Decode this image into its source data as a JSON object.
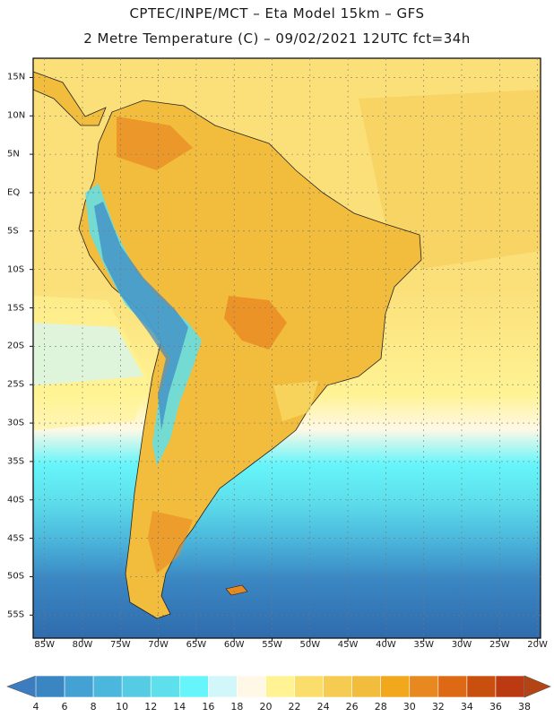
{
  "header": {
    "line1": "CPTEC/INPE/MCT –  Eta Model 15km – GFS",
    "line2": "2 Metre Temperature (C) – 09/02/2021 12UTC fct=34h"
  },
  "map": {
    "lat_labels": [
      "15N",
      "10N",
      "5N",
      "EQ",
      "5S",
      "10S",
      "15S",
      "20S",
      "25S",
      "30S",
      "35S",
      "40S",
      "45S",
      "50S",
      "55S"
    ],
    "lon_labels": [
      "85W",
      "80W",
      "75W",
      "70W",
      "65W",
      "60W",
      "55W",
      "50W",
      "45W",
      "40W",
      "35W",
      "30W",
      "25W",
      "20W"
    ]
  },
  "colorbar": {
    "labels": [
      "4",
      "6",
      "8",
      "10",
      "12",
      "14",
      "16",
      "18",
      "20",
      "22",
      "24",
      "26",
      "28",
      "30",
      "32",
      "34",
      "36",
      "38"
    ],
    "colors": [
      "#2f6cad",
      "#3a86c3",
      "#43a1d3",
      "#4bb7dc",
      "#55cbe4",
      "#5ee0ec",
      "#66f5fa",
      "#d2f7fb",
      "#fff8e6",
      "#fff394",
      "#fadd6a",
      "#f5cb52",
      "#f2bc3d",
      "#f2a81c",
      "#e88821",
      "#de6914",
      "#c94f0e",
      "#bb3a12"
    ],
    "low_color": "#3c7dc0",
    "high_color": "#b54414"
  }
}
